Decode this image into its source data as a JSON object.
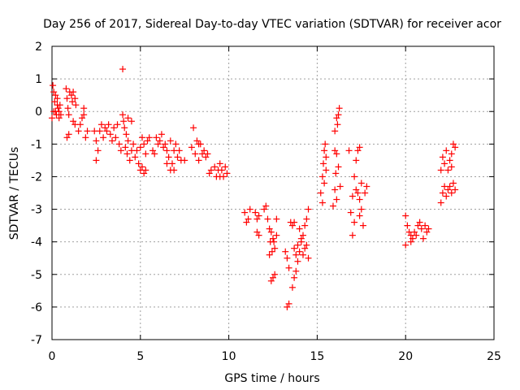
{
  "chart_data": {
    "type": "scatter",
    "title": "Day 256 of 2017, Sidereal Day-to-day VTEC variation (SDTVAR) for receiver acor",
    "xlabel": "GPS time / hours",
    "ylabel": "SDTVAR / TECUs",
    "xlim": [
      0,
      25
    ],
    "ylim": [
      -7,
      2
    ],
    "x_ticks": [
      0,
      5,
      10,
      15,
      20,
      25
    ],
    "y_ticks": [
      -7,
      -6,
      -5,
      -4,
      -3,
      -2,
      -1,
      0,
      1,
      2
    ],
    "x_tick_labels": [
      "0",
      "5",
      "10",
      "15",
      "20",
      "25"
    ],
    "y_tick_labels": [
      "-7",
      "-6",
      "-5",
      "-4",
      "-3",
      "-2",
      "-1",
      "0",
      "1",
      "2"
    ],
    "grid": true,
    "marker": "+",
    "color": "#ff0000",
    "series": [
      {
        "name": "SDTVAR",
        "points": [
          [
            0.0,
            -0.2
          ],
          [
            0.05,
            0.8
          ],
          [
            0.1,
            0.6
          ],
          [
            0.15,
            0.3
          ],
          [
            0.2,
            0.0
          ],
          [
            0.25,
            -0.1
          ],
          [
            0.3,
            0.2
          ],
          [
            0.35,
            0.1
          ],
          [
            0.4,
            -0.2
          ],
          [
            0.45,
            0.2
          ],
          [
            0.5,
            -0.1
          ],
          [
            0.1,
            0.0
          ],
          [
            0.2,
            0.5
          ],
          [
            0.3,
            0.4
          ],
          [
            0.4,
            0.0
          ],
          [
            0.8,
            0.7
          ],
          [
            0.85,
            0.4
          ],
          [
            0.9,
            0.1
          ],
          [
            0.95,
            -0.1
          ],
          [
            1.0,
            0.6
          ],
          [
            1.1,
            0.5
          ],
          [
            1.15,
            0.3
          ],
          [
            1.2,
            0.6
          ],
          [
            1.3,
            0.4
          ],
          [
            1.35,
            0.2
          ],
          [
            0.85,
            -0.8
          ],
          [
            0.95,
            -0.7
          ],
          [
            1.2,
            -0.3
          ],
          [
            1.3,
            -0.4
          ],
          [
            1.5,
            -0.6
          ],
          [
            1.6,
            -0.4
          ],
          [
            1.7,
            -0.2
          ],
          [
            1.8,
            -0.1
          ],
          [
            1.9,
            -0.8
          ],
          [
            2.0,
            -0.6
          ],
          [
            1.8,
            0.1
          ],
          [
            2.4,
            -0.6
          ],
          [
            2.5,
            -0.9
          ],
          [
            2.5,
            -1.5
          ],
          [
            2.6,
            -1.2
          ],
          [
            2.7,
            -0.6
          ],
          [
            2.8,
            -0.4
          ],
          [
            2.9,
            -0.8
          ],
          [
            3.0,
            -0.5
          ],
          [
            3.1,
            -0.6
          ],
          [
            3.2,
            -0.4
          ],
          [
            3.3,
            -0.7
          ],
          [
            3.4,
            -0.9
          ],
          [
            3.5,
            -0.5
          ],
          [
            3.6,
            -0.8
          ],
          [
            3.7,
            -0.4
          ],
          [
            3.8,
            -1.0
          ],
          [
            3.9,
            -1.2
          ],
          [
            4.0,
            1.3
          ],
          [
            4.0,
            -0.1
          ],
          [
            4.05,
            -0.3
          ],
          [
            4.1,
            -0.5
          ],
          [
            4.15,
            -1.1
          ],
          [
            4.2,
            -0.7
          ],
          [
            4.25,
            -1.3
          ],
          [
            4.3,
            -0.9
          ],
          [
            4.4,
            -1.5
          ],
          [
            4.5,
            -1.2
          ],
          [
            4.6,
            -1.0
          ],
          [
            4.7,
            -1.4
          ],
          [
            4.8,
            -1.2
          ],
          [
            4.5,
            -0.3
          ],
          [
            4.3,
            -0.2
          ],
          [
            4.9,
            -1.6
          ],
          [
            5.0,
            -1.8
          ],
          [
            5.1,
            -1.7
          ],
          [
            5.2,
            -1.9
          ],
          [
            5.3,
            -1.8
          ],
          [
            5.0,
            -1.1
          ],
          [
            5.1,
            -0.8
          ],
          [
            5.2,
            -1.0
          ],
          [
            5.3,
            -1.3
          ],
          [
            5.4,
            -0.9
          ],
          [
            5.5,
            -0.8
          ],
          [
            5.7,
            -1.2
          ],
          [
            5.8,
            -1.3
          ],
          [
            5.9,
            -0.8
          ],
          [
            6.0,
            -1.0
          ],
          [
            6.1,
            -0.9
          ],
          [
            6.2,
            -0.7
          ],
          [
            6.3,
            -1.1
          ],
          [
            6.4,
            -1.0
          ],
          [
            6.5,
            -1.2
          ],
          [
            6.5,
            -1.6
          ],
          [
            6.6,
            -1.4
          ],
          [
            6.7,
            -1.8
          ],
          [
            6.8,
            -1.6
          ],
          [
            6.9,
            -1.2
          ],
          [
            7.0,
            -1.0
          ],
          [
            7.1,
            -1.4
          ],
          [
            7.2,
            -1.2
          ],
          [
            7.3,
            -1.5
          ],
          [
            6.7,
            -0.9
          ],
          [
            6.9,
            -1.8
          ],
          [
            7.5,
            -1.5
          ],
          [
            7.9,
            -1.1
          ],
          [
            8.0,
            -0.5
          ],
          [
            8.1,
            -1.3
          ],
          [
            8.2,
            -0.9
          ],
          [
            8.3,
            -1.5
          ],
          [
            8.4,
            -1.0
          ],
          [
            8.5,
            -1.3
          ],
          [
            8.6,
            -1.2
          ],
          [
            8.7,
            -1.4
          ],
          [
            8.8,
            -1.3
          ],
          [
            8.3,
            -1.0
          ],
          [
            8.9,
            -1.9
          ],
          [
            9.0,
            -1.8
          ],
          [
            9.2,
            -1.7
          ],
          [
            9.3,
            -2.0
          ],
          [
            9.4,
            -1.8
          ],
          [
            9.5,
            -1.6
          ],
          [
            9.6,
            -1.8
          ],
          [
            9.7,
            -2.0
          ],
          [
            9.8,
            -1.7
          ],
          [
            9.9,
            -1.9
          ],
          [
            9.5,
            -2.0
          ],
          [
            10.9,
            -3.1
          ],
          [
            11.0,
            -3.4
          ],
          [
            11.1,
            -3.3
          ],
          [
            11.2,
            -3.0
          ],
          [
            11.5,
            -3.1
          ],
          [
            11.6,
            -3.3
          ],
          [
            11.7,
            -3.2
          ],
          [
            11.6,
            -3.7
          ],
          [
            11.7,
            -3.8
          ],
          [
            12.0,
            -3.0
          ],
          [
            12.1,
            -2.9
          ],
          [
            12.2,
            -3.3
          ],
          [
            12.3,
            -3.6
          ],
          [
            12.35,
            -4.0
          ],
          [
            12.4,
            -3.7
          ],
          [
            12.45,
            -4.3
          ],
          [
            12.5,
            -3.9
          ],
          [
            12.55,
            -4.0
          ],
          [
            12.6,
            -4.2
          ],
          [
            12.7,
            -3.8
          ],
          [
            12.3,
            -4.4
          ],
          [
            12.4,
            -5.2
          ],
          [
            12.5,
            -5.1
          ],
          [
            12.6,
            -5.0
          ],
          [
            12.7,
            -3.3
          ],
          [
            13.2,
            -4.3
          ],
          [
            13.3,
            -4.5
          ],
          [
            13.4,
            -4.8
          ],
          [
            13.3,
            -6.0
          ],
          [
            13.4,
            -5.9
          ],
          [
            13.5,
            -3.4
          ],
          [
            13.6,
            -3.5
          ],
          [
            13.7,
            -3.4
          ],
          [
            13.7,
            -4.2
          ],
          [
            13.8,
            -4.4
          ],
          [
            13.9,
            -4.1
          ],
          [
            13.6,
            -5.4
          ],
          [
            13.7,
            -5.1
          ],
          [
            13.8,
            -4.9
          ],
          [
            13.9,
            -4.6
          ],
          [
            14.0,
            -4.3
          ],
          [
            14.1,
            -4.0
          ],
          [
            14.2,
            -3.8
          ],
          [
            14.3,
            -3.5
          ],
          [
            14.4,
            -3.3
          ],
          [
            14.5,
            -3.0
          ],
          [
            14.2,
            -4.4
          ],
          [
            14.3,
            -4.2
          ],
          [
            14.4,
            -4.1
          ],
          [
            14.5,
            -4.5
          ],
          [
            14.0,
            -3.6
          ],
          [
            14.1,
            -3.9
          ],
          [
            15.2,
            -2.5
          ],
          [
            15.3,
            -2.0
          ],
          [
            15.35,
            -1.6
          ],
          [
            15.4,
            -1.2
          ],
          [
            15.45,
            -1.0
          ],
          [
            15.5,
            -1.4
          ],
          [
            15.3,
            -2.8
          ],
          [
            15.4,
            -2.2
          ],
          [
            15.5,
            -1.8
          ],
          [
            15.9,
            -2.9
          ],
          [
            16.0,
            -2.4
          ],
          [
            16.05,
            -1.9
          ],
          [
            16.1,
            -1.3
          ],
          [
            16.15,
            -0.4
          ],
          [
            16.2,
            -0.1
          ],
          [
            16.25,
            0.1
          ],
          [
            16.1,
            -0.2
          ],
          [
            16.0,
            -0.6
          ],
          [
            16.2,
            -1.7
          ],
          [
            16.3,
            -2.3
          ],
          [
            16.1,
            -2.7
          ],
          [
            16.0,
            -1.2
          ],
          [
            16.8,
            -1.2
          ],
          [
            16.9,
            -3.1
          ],
          [
            17.0,
            -2.6
          ],
          [
            17.0,
            -3.8
          ],
          [
            17.1,
            -3.4
          ],
          [
            17.1,
            -2.0
          ],
          [
            17.2,
            -1.5
          ],
          [
            17.3,
            -1.2
          ],
          [
            17.4,
            -1.1
          ],
          [
            17.2,
            -2.4
          ],
          [
            17.3,
            -2.5
          ],
          [
            17.4,
            -2.7
          ],
          [
            17.5,
            -3.0
          ],
          [
            17.6,
            -3.5
          ],
          [
            17.7,
            -2.5
          ],
          [
            17.8,
            -2.3
          ],
          [
            17.5,
            -2.2
          ],
          [
            17.4,
            -3.2
          ],
          [
            20.0,
            -3.2
          ],
          [
            20.0,
            -4.1
          ],
          [
            20.1,
            -3.5
          ],
          [
            20.2,
            -3.7
          ],
          [
            20.3,
            -3.8
          ],
          [
            20.3,
            -4.0
          ],
          [
            20.4,
            -3.9
          ],
          [
            20.5,
            -3.7
          ],
          [
            20.6,
            -3.8
          ],
          [
            20.7,
            -3.5
          ],
          [
            20.8,
            -3.4
          ],
          [
            20.9,
            -3.6
          ],
          [
            21.0,
            -3.9
          ],
          [
            21.1,
            -3.5
          ],
          [
            21.2,
            -3.7
          ],
          [
            21.3,
            -3.6
          ],
          [
            22.0,
            -2.8
          ],
          [
            22.1,
            -2.5
          ],
          [
            22.2,
            -2.3
          ],
          [
            22.3,
            -2.6
          ],
          [
            22.4,
            -2.4
          ],
          [
            22.5,
            -2.3
          ],
          [
            22.6,
            -2.5
          ],
          [
            22.7,
            -2.2
          ],
          [
            22.8,
            -2.4
          ],
          [
            22.0,
            -1.8
          ],
          [
            22.1,
            -1.4
          ],
          [
            22.2,
            -1.6
          ],
          [
            22.3,
            -1.2
          ],
          [
            22.4,
            -1.8
          ],
          [
            22.5,
            -1.5
          ],
          [
            22.6,
            -1.3
          ],
          [
            22.7,
            -1.0
          ],
          [
            22.8,
            -1.1
          ],
          [
            22.6,
            -1.7
          ]
        ]
      }
    ]
  }
}
